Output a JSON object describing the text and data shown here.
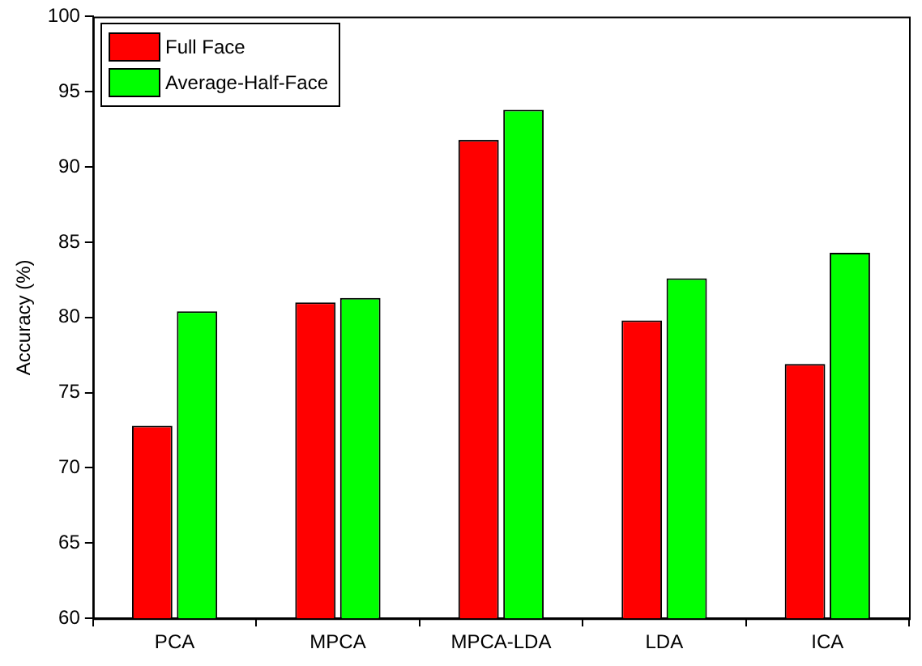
{
  "chart_data": {
    "type": "bar",
    "ylabel": "Accuracy (%)",
    "categories": [
      "PCA",
      "MPCA",
      "MPCA-LDA",
      "LDA",
      "ICA"
    ],
    "series": [
      {
        "name": "Full Face",
        "color": "#ff0000",
        "values": [
          72.8,
          81.0,
          91.8,
          79.8,
          76.9
        ]
      },
      {
        "name": "Average-Half-Face",
        "color": "#00ff00",
        "values": [
          80.4,
          81.3,
          93.8,
          82.6,
          84.3
        ]
      }
    ],
    "ylim": [
      60,
      100
    ],
    "yticks": [
      60,
      65,
      70,
      75,
      80,
      85,
      90,
      95,
      100
    ],
    "grid": false,
    "legend": "top left"
  }
}
